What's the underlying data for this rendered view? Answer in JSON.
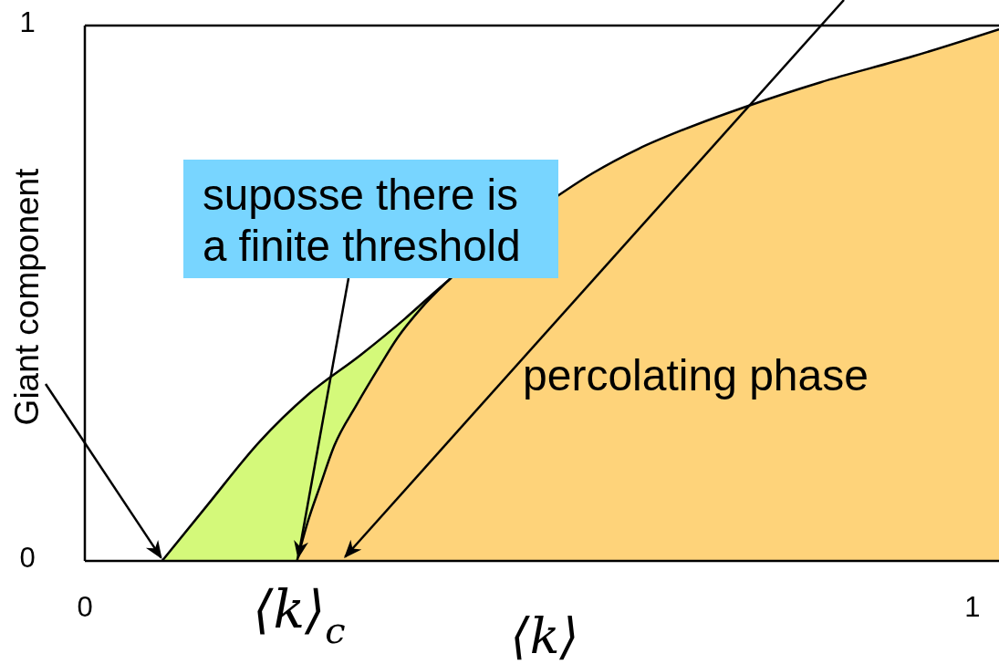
{
  "chart_data": {
    "type": "area",
    "xlabel": "⟨k⟩",
    "ylabel": "Giant component",
    "xlim": [
      0,
      1.03
    ],
    "xticks": [
      0,
      1
    ],
    "ylim": [
      0,
      1
    ],
    "yticks": [
      0,
      1
    ],
    "series": [
      {
        "color": "#d4f97a",
        "x": [
          0.087,
          0.137,
          0.197,
          0.251,
          0.311,
          0.361,
          0.397,
          0.411
        ],
        "values": [
          0,
          0.102,
          0.223,
          0.31,
          0.385,
          0.453,
          0.506,
          0.526
        ]
      },
      {
        "color": "#fed37a",
        "x": [
          0.239,
          0.251,
          0.265,
          0.281,
          0.306,
          0.333,
          0.352,
          0.379,
          0.411,
          0.54,
          0.572,
          0.624,
          0.675,
          0.744,
          0.829,
          0.932,
          1.03
        ],
        "values": [
          0,
          0.072,
          0.14,
          0.215,
          0.291,
          0.366,
          0.416,
          0.472,
          0.526,
          0.69,
          0.724,
          0.77,
          0.806,
          0.848,
          0.894,
          0.942,
          0.993
        ]
      }
    ],
    "annotations": [
      {
        "text": "suposse there is a finite threshold",
        "x": 0.239,
        "y": 0
      },
      "⟨k⟩$_{c}$",
      "percolating phase"
    ]
  }
}
